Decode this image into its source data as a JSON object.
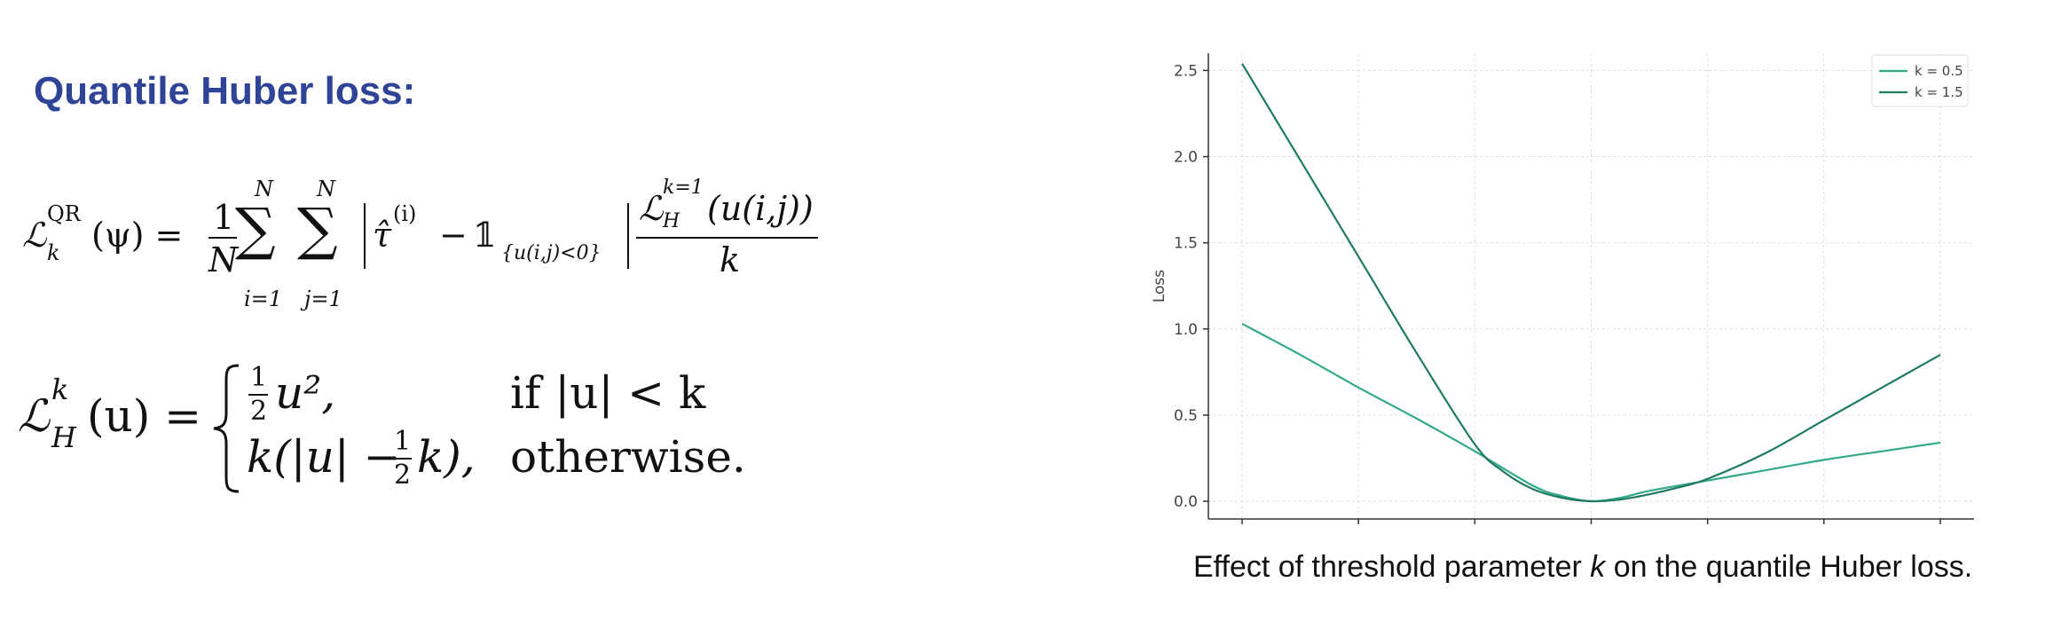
{
  "title": "Quantile Huber loss:",
  "caption": {
    "before": "Effect of threshold parameter ",
    "k": "k",
    "after": " on the quantile Huber loss."
  },
  "eq1": {
    "lhs": "ℒ",
    "lhs_sup": "QR",
    "lhs_sub": "k",
    "lhs_arg": "(ψ) =",
    "frac_num": "1",
    "frac_den": "N",
    "sum1_top": "N",
    "sum1_bot": "i=1",
    "sum2_top": "N",
    "sum2_bot": "j=1",
    "tau": "τ̂",
    "tau_sup": "(i)",
    "minus": "−",
    "indicator": "𝟙",
    "ind_sub": "{u(i,j)<0}",
    "rhs_num": "ℒ",
    "rhs_num_sup": "k=1",
    "rhs_num_sub": "H",
    "rhs_num_arg": "(u(i,j))",
    "rhs_den": "k"
  },
  "eq2": {
    "lhs": "ℒ",
    "lhs_sup": "k",
    "lhs_sub": "H",
    "lhs_arg": "(u) =",
    "case1_half": "1",
    "case1_two": "2",
    "case1_rest": "u²,",
    "case1_cond": "if |u| < k",
    "case2_pre": "k(|u| −",
    "case2_half": "1",
    "case2_two": "2",
    "case2_rest": "k),",
    "case2_cond": "otherwise."
  },
  "chart_data": {
    "type": "line",
    "title": "",
    "xlabel": "",
    "ylabel": "Loss",
    "xlim": [
      -3,
      3
    ],
    "ylim": [
      0,
      2.6
    ],
    "yticks": [
      "0.0",
      "0.5",
      "1.0",
      "1.5",
      "2.0",
      "2.5"
    ],
    "ytick_values": [
      0,
      0.5,
      1.0,
      1.5,
      2.0,
      2.5
    ],
    "xtick_values": [
      -3,
      -2,
      -1,
      0,
      1,
      2,
      3
    ],
    "grid": true,
    "legend_position": "top-right",
    "series": [
      {
        "name": "k = 0.5",
        "color": "#33a98a",
        "x": [
          -3,
          -2.5,
          -2,
          -1.5,
          -1,
          -0.5,
          -0.25,
          0,
          0.25,
          0.5,
          1,
          1.5,
          2,
          2.5,
          3
        ],
        "y": [
          1.03,
          0.85,
          0.66,
          0.48,
          0.29,
          0.09,
          0.03,
          0.0,
          0.02,
          0.06,
          0.12,
          0.18,
          0.24,
          0.29,
          0.34
        ]
      },
      {
        "name": "k = 1.5",
        "color": "#1f7a63",
        "x": [
          -3,
          -2.5,
          -2,
          -1.5,
          -1,
          -0.75,
          -0.5,
          -0.25,
          0,
          0.25,
          0.5,
          0.75,
          1,
          1.5,
          2,
          2.5,
          3
        ],
        "y": [
          2.54,
          1.98,
          1.42,
          0.86,
          0.33,
          0.17,
          0.07,
          0.02,
          0.0,
          0.01,
          0.04,
          0.08,
          0.13,
          0.28,
          0.47,
          0.66,
          0.85
        ]
      }
    ]
  }
}
